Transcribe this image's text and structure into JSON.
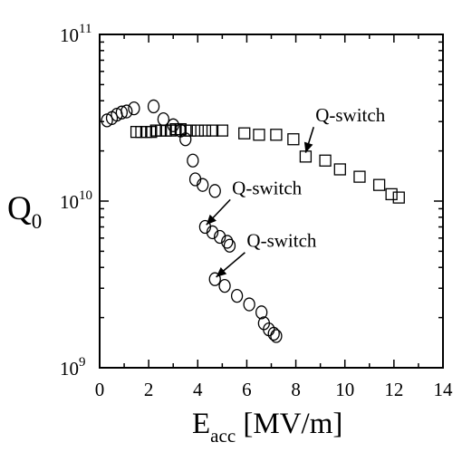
{
  "chart_data": {
    "type": "scatter",
    "title": "",
    "x_scale": "linear",
    "y_scale": "log",
    "xlim": [
      0,
      14
    ],
    "ylim": [
      1000000000,
      100000000000
    ],
    "grid": false,
    "legend": "none",
    "xlabel": {
      "main": "E",
      "sub": "acc",
      "unit": " [MV/m]"
    },
    "ylabel": {
      "main": "Q",
      "sub": "0"
    },
    "x_ticks": [
      0,
      2,
      4,
      6,
      8,
      10,
      12,
      14
    ],
    "x_tick_labels": [
      "0",
      "2",
      "4",
      "6",
      "8",
      "10",
      "12",
      "14"
    ],
    "y_tick_labels": [
      {
        "value": 1000000000,
        "base": "10",
        "exp": "9"
      },
      {
        "value": 10000000000,
        "base": "10",
        "exp": "10"
      },
      {
        "value": 100000000000,
        "base": "10",
        "exp": "11"
      }
    ],
    "series": [
      {
        "marker": "circle",
        "points": [
          [
            0.3,
            30500000000
          ],
          [
            0.5,
            31500000000
          ],
          [
            0.7,
            33000000000
          ],
          [
            0.9,
            34000000000
          ],
          [
            1.1,
            34500000000
          ],
          [
            1.4,
            36000000000
          ],
          [
            2.2,
            37000000000
          ],
          [
            2.6,
            31000000000
          ],
          [
            3.0,
            28500000000
          ],
          [
            3.3,
            26500000000
          ],
          [
            3.5,
            23500000000
          ],
          [
            3.8,
            17500000000
          ],
          [
            3.9,
            13500000000
          ],
          [
            4.2,
            12500000000
          ],
          [
            4.7,
            11500000000
          ],
          [
            4.3,
            7000000000
          ],
          [
            4.6,
            6500000000
          ],
          [
            4.9,
            6100000000
          ],
          [
            5.2,
            5700000000
          ],
          [
            5.3,
            5400000000
          ],
          [
            4.7,
            3400000000
          ],
          [
            5.1,
            3100000000
          ],
          [
            5.6,
            2700000000
          ],
          [
            6.1,
            2400000000
          ],
          [
            6.6,
            2150000000
          ],
          [
            6.7,
            1850000000
          ],
          [
            6.9,
            1700000000
          ],
          [
            7.1,
            1600000000
          ],
          [
            7.2,
            1550000000
          ]
        ]
      },
      {
        "marker": "square",
        "points": [
          [
            1.5,
            26000000000
          ],
          [
            1.7,
            26000000000
          ],
          [
            1.9,
            26000000000
          ],
          [
            2.1,
            26000000000
          ],
          [
            2.3,
            26500000000
          ],
          [
            2.5,
            26500000000
          ],
          [
            2.7,
            26500000000
          ],
          [
            2.9,
            26500000000
          ],
          [
            3.1,
            27000000000
          ],
          [
            3.3,
            27000000000
          ],
          [
            3.5,
            26500000000
          ],
          [
            3.7,
            26500000000
          ],
          [
            4.0,
            26500000000
          ],
          [
            4.3,
            26500000000
          ],
          [
            4.6,
            26500000000
          ],
          [
            5.0,
            26500000000
          ],
          [
            5.9,
            25500000000
          ],
          [
            6.5,
            25000000000
          ],
          [
            7.2,
            25000000000
          ],
          [
            7.9,
            23500000000
          ],
          [
            8.4,
            18500000000
          ],
          [
            9.2,
            17500000000
          ],
          [
            9.8,
            15500000000
          ],
          [
            10.6,
            14000000000
          ],
          [
            11.4,
            12500000000
          ],
          [
            11.9,
            11000000000
          ],
          [
            12.2,
            10500000000
          ]
        ]
      }
    ],
    "annotations": [
      {
        "text": "Q-switch",
        "x": 8.8,
        "y": 30000000000,
        "arrow_to": [
          8.4,
          19500000000
        ]
      },
      {
        "text": "Q-switch",
        "x": 5.4,
        "y": 11000000000,
        "arrow_to": [
          4.35,
          7200000000
        ]
      },
      {
        "text": "Q-switch",
        "x": 6.0,
        "y": 5300000000,
        "arrow_to": [
          4.75,
          3500000000
        ]
      }
    ]
  }
}
